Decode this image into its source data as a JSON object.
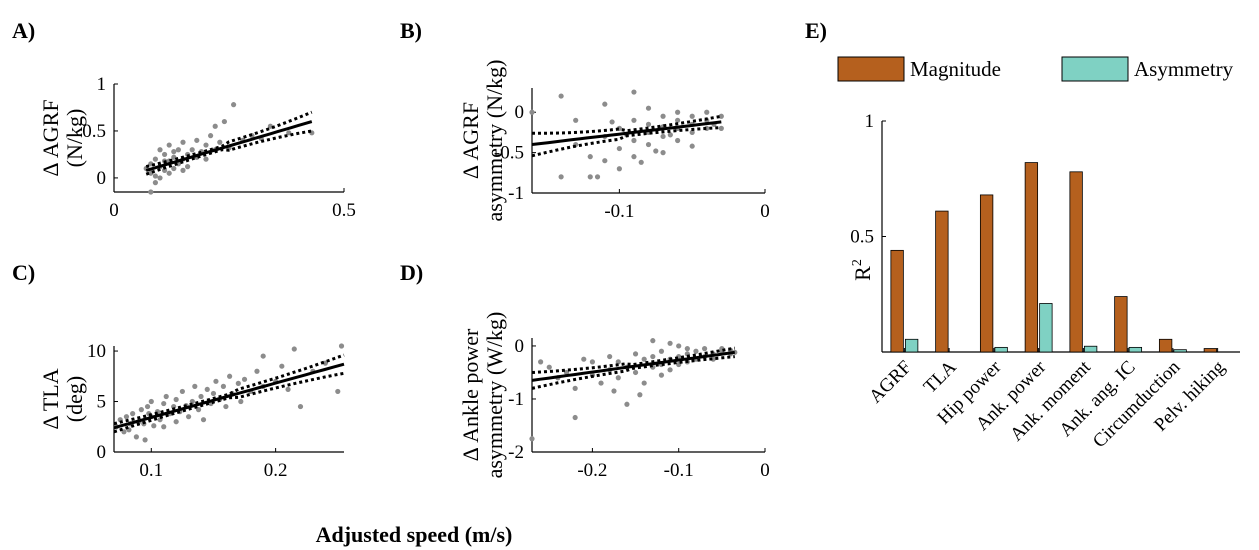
{
  "figure": {
    "xlabel": "Adjusted speed (m/s)"
  },
  "chart_data": [
    {
      "id": "A",
      "letter": "A)",
      "type": "scatter",
      "ylabel_lines": [
        "Δ AGRF",
        "(N/kg)"
      ],
      "xlim": [
        0,
        0.5
      ],
      "ylim": [
        -0.15,
        1.0
      ],
      "xticks": [
        0,
        0.5
      ],
      "xtick_labels": [
        "0",
        "0.5"
      ],
      "yticks": [
        0,
        0.5,
        1
      ],
      "ytick_labels": [
        "0",
        "0.5",
        "1"
      ],
      "fit": {
        "x0": 0.07,
        "x1": 0.43,
        "y0": 0.08,
        "y1": 0.6,
        "ci": [
          0.04,
          0.1
        ]
      },
      "points": [
        [
          0.07,
          0.1
        ],
        [
          0.08,
          0.05
        ],
        [
          0.08,
          0.15
        ],
        [
          0.09,
          0.2
        ],
        [
          0.09,
          -0.05
        ],
        [
          0.1,
          0.3
        ],
        [
          0.1,
          0.12
        ],
        [
          0.1,
          0.0
        ],
        [
          0.11,
          0.25
        ],
        [
          0.11,
          0.08
        ],
        [
          0.12,
          0.18
        ],
        [
          0.12,
          0.35
        ],
        [
          0.12,
          0.05
        ],
        [
          0.13,
          0.22
        ],
        [
          0.13,
          0.1
        ],
        [
          0.14,
          0.15
        ],
        [
          0.14,
          0.3
        ],
        [
          0.15,
          0.2
        ],
        [
          0.15,
          0.38
        ],
        [
          0.16,
          0.25
        ],
        [
          0.16,
          0.12
        ],
        [
          0.17,
          0.3
        ],
        [
          0.18,
          0.22
        ],
        [
          0.18,
          0.4
        ],
        [
          0.19,
          0.28
        ],
        [
          0.2,
          0.35
        ],
        [
          0.2,
          0.2
        ],
        [
          0.21,
          0.45
        ],
        [
          0.22,
          0.3
        ],
        [
          0.22,
          0.55
        ],
        [
          0.23,
          0.38
        ],
        [
          0.24,
          0.6
        ],
        [
          0.25,
          0.32
        ],
        [
          0.26,
          0.78
        ],
        [
          0.28,
          0.4
        ],
        [
          0.3,
          0.45
        ],
        [
          0.32,
          0.42
        ],
        [
          0.34,
          0.55
        ],
        [
          0.38,
          0.48
        ],
        [
          0.43,
          0.48
        ],
        [
          0.08,
          -0.15
        ],
        [
          0.09,
          0.02
        ],
        [
          0.11,
          0.18
        ],
        [
          0.13,
          0.28
        ],
        [
          0.15,
          0.08
        ]
      ]
    },
    {
      "id": "B",
      "letter": "B)",
      "type": "scatter",
      "ylabel_lines": [
        "Δ AGRF",
        "asymmetry (N/kg)"
      ],
      "xlim": [
        -0.16,
        0
      ],
      "ylim": [
        -1.0,
        0.3
      ],
      "xticks": [
        -0.1,
        0
      ],
      "xtick_labels": [
        "-0.1",
        "0"
      ],
      "yticks": [
        -1,
        -0.5,
        0
      ],
      "ytick_labels": [
        "-1",
        "-0.5",
        "0"
      ],
      "fit": {
        "x0": -0.16,
        "x1": -0.03,
        "y0": -0.4,
        "y1": -0.12,
        "ci": [
          0.14,
          0.07
        ]
      },
      "points": [
        [
          -0.16,
          0.0
        ],
        [
          -0.14,
          0.2
        ],
        [
          -0.14,
          -0.8
        ],
        [
          -0.13,
          -0.4
        ],
        [
          -0.13,
          -0.1
        ],
        [
          -0.12,
          -0.55
        ],
        [
          -0.12,
          -0.8
        ],
        [
          -0.11,
          -0.3
        ],
        [
          -0.11,
          -0.6
        ],
        [
          -0.11,
          0.1
        ],
        [
          -0.1,
          -0.2
        ],
        [
          -0.1,
          -0.45
        ],
        [
          -0.1,
          -0.7
        ],
        [
          -0.09,
          0.25
        ],
        [
          -0.09,
          -0.35
        ],
        [
          -0.09,
          -0.1
        ],
        [
          -0.09,
          -0.55
        ],
        [
          -0.08,
          -0.15
        ],
        [
          -0.08,
          -0.4
        ],
        [
          -0.08,
          0.05
        ],
        [
          -0.08,
          -0.25
        ],
        [
          -0.07,
          -0.3
        ],
        [
          -0.07,
          -0.05
        ],
        [
          -0.07,
          -0.5
        ],
        [
          -0.07,
          -0.18
        ],
        [
          -0.06,
          -0.2
        ],
        [
          -0.06,
          -0.1
        ],
        [
          -0.06,
          -0.35
        ],
        [
          -0.06,
          0.0
        ],
        [
          -0.05,
          -0.15
        ],
        [
          -0.05,
          -0.25
        ],
        [
          -0.05,
          -0.05
        ],
        [
          -0.05,
          -0.42
        ],
        [
          -0.04,
          -0.1
        ],
        [
          -0.04,
          -0.2
        ],
        [
          -0.04,
          0.0
        ],
        [
          -0.035,
          -0.15
        ],
        [
          -0.03,
          -0.05
        ],
        [
          -0.03,
          -0.2
        ],
        [
          -0.085,
          -0.62
        ],
        [
          -0.075,
          -0.48
        ],
        [
          -0.065,
          -0.28
        ],
        [
          -0.095,
          -0.28
        ],
        [
          -0.105,
          -0.12
        ],
        [
          -0.115,
          -0.8
        ]
      ]
    },
    {
      "id": "C",
      "letter": "C)",
      "type": "scatter",
      "ylabel_lines": [
        "Δ TLA",
        "(deg)"
      ],
      "xlim": [
        0.07,
        0.255
      ],
      "ylim": [
        0,
        10.5
      ],
      "xticks": [
        0.1,
        0.2
      ],
      "xtick_labels": [
        "0.1",
        "0.2"
      ],
      "yticks": [
        0,
        5,
        10
      ],
      "ytick_labels": [
        "0",
        "5",
        "10"
      ],
      "fit": {
        "x0": 0.07,
        "x1": 0.255,
        "y0": 2.4,
        "y1": 8.7,
        "ci": [
          0.4,
          0.9
        ]
      },
      "points": [
        [
          0.072,
          2.5
        ],
        [
          0.075,
          3.2
        ],
        [
          0.078,
          2.0
        ],
        [
          0.08,
          3.5
        ],
        [
          0.082,
          2.2
        ],
        [
          0.085,
          3.8
        ],
        [
          0.088,
          1.5
        ],
        [
          0.09,
          3.0
        ],
        [
          0.092,
          4.2
        ],
        [
          0.094,
          2.8
        ],
        [
          0.095,
          1.2
        ],
        [
          0.097,
          4.5
        ],
        [
          0.1,
          3.5
        ],
        [
          0.1,
          5.0
        ],
        [
          0.102,
          2.6
        ],
        [
          0.105,
          4.0
        ],
        [
          0.107,
          3.2
        ],
        [
          0.11,
          4.8
        ],
        [
          0.11,
          2.5
        ],
        [
          0.112,
          5.5
        ],
        [
          0.115,
          3.8
        ],
        [
          0.118,
          4.5
        ],
        [
          0.12,
          3.0
        ],
        [
          0.12,
          5.2
        ],
        [
          0.123,
          4.0
        ],
        [
          0.125,
          6.0
        ],
        [
          0.128,
          4.6
        ],
        [
          0.13,
          3.5
        ],
        [
          0.133,
          5.0
        ],
        [
          0.135,
          6.5
        ],
        [
          0.138,
          4.2
        ],
        [
          0.14,
          5.5
        ],
        [
          0.142,
          3.2
        ],
        [
          0.145,
          6.2
        ],
        [
          0.148,
          4.8
        ],
        [
          0.15,
          5.8
        ],
        [
          0.152,
          7.0
        ],
        [
          0.155,
          5.2
        ],
        [
          0.158,
          6.5
        ],
        [
          0.16,
          4.5
        ],
        [
          0.163,
          7.5
        ],
        [
          0.165,
          5.8
        ],
        [
          0.17,
          6.8
        ],
        [
          0.172,
          5.0
        ],
        [
          0.175,
          7.2
        ],
        [
          0.18,
          6.0
        ],
        [
          0.185,
          8.0
        ],
        [
          0.19,
          9.5
        ],
        [
          0.19,
          6.5
        ],
        [
          0.2,
          7.0
        ],
        [
          0.205,
          8.5
        ],
        [
          0.21,
          6.2
        ],
        [
          0.215,
          10.2
        ],
        [
          0.22,
          4.5
        ],
        [
          0.23,
          8.0
        ],
        [
          0.24,
          8.8
        ],
        [
          0.25,
          6.0
        ],
        [
          0.253,
          10.5
        ],
        [
          0.083,
          2.8
        ],
        [
          0.098,
          3.8
        ]
      ]
    },
    {
      "id": "D",
      "letter": "D)",
      "type": "scatter",
      "ylabel_lines": [
        "Δ Ankle power",
        "asymmetry (W/kg)"
      ],
      "xlim": [
        -0.27,
        0
      ],
      "ylim": [
        -2.0,
        0.15
      ],
      "xticks": [
        -0.2,
        -0.1,
        0
      ],
      "xtick_labels": [
        "-0.2",
        "-0.1",
        "0"
      ],
      "yticks": [
        -2,
        -1,
        0
      ],
      "ytick_labels": [
        "-2",
        "-1",
        "0"
      ],
      "fit": {
        "x0": -0.27,
        "x1": -0.035,
        "y0": -0.65,
        "y1": -0.12,
        "ci": [
          0.15,
          0.08
        ]
      },
      "points": [
        [
          -0.27,
          -1.75
        ],
        [
          -0.26,
          -0.3
        ],
        [
          -0.25,
          -0.4
        ],
        [
          -0.24,
          -0.6
        ],
        [
          -0.23,
          -0.5
        ],
        [
          -0.22,
          -1.35
        ],
        [
          -0.22,
          -0.8
        ],
        [
          -0.21,
          -0.25
        ],
        [
          -0.2,
          -0.55
        ],
        [
          -0.2,
          -0.3
        ],
        [
          -0.19,
          -0.7
        ],
        [
          -0.18,
          -0.2
        ],
        [
          -0.18,
          -0.45
        ],
        [
          -0.17,
          -0.6
        ],
        [
          -0.17,
          -0.3
        ],
        [
          -0.16,
          -1.1
        ],
        [
          -0.16,
          -0.4
        ],
        [
          -0.15,
          -0.15
        ],
        [
          -0.15,
          -0.5
        ],
        [
          -0.14,
          -0.25
        ],
        [
          -0.14,
          -0.7
        ],
        [
          -0.13,
          0.1
        ],
        [
          -0.13,
          -0.4
        ],
        [
          -0.13,
          -0.2
        ],
        [
          -0.12,
          -0.35
        ],
        [
          -0.12,
          -0.55
        ],
        [
          -0.12,
          -0.1
        ],
        [
          -0.11,
          -0.25
        ],
        [
          -0.11,
          0.05
        ],
        [
          -0.11,
          -0.45
        ],
        [
          -0.1,
          -0.2
        ],
        [
          -0.1,
          -0.35
        ],
        [
          -0.1,
          0.0
        ],
        [
          -0.09,
          -0.15
        ],
        [
          -0.09,
          -0.3
        ],
        [
          -0.09,
          -0.05
        ],
        [
          -0.08,
          -0.25
        ],
        [
          -0.08,
          -0.1
        ],
        [
          -0.07,
          -0.2
        ],
        [
          -0.07,
          -0.05
        ],
        [
          -0.06,
          -0.15
        ],
        [
          -0.06,
          -0.25
        ],
        [
          -0.05,
          -0.1
        ],
        [
          -0.05,
          -0.05
        ],
        [
          -0.04,
          -0.15
        ],
        [
          -0.04,
          -0.08
        ],
        [
          -0.035,
          -0.12
        ],
        [
          -0.145,
          -0.92
        ],
        [
          -0.175,
          -0.85
        ]
      ]
    },
    {
      "id": "E",
      "letter": "E)",
      "type": "bar",
      "ylabel": "R",
      "ylabel_sup": "2",
      "ylim": [
        0,
        1
      ],
      "yticks": [
        0.5,
        1
      ],
      "ytick_labels": [
        "0.5",
        "1"
      ],
      "categories": [
        "AGRF",
        "TLA",
        "Hip power",
        "Ank. power",
        "Ank. moment",
        "Ank. ang. IC",
        "Circumduction",
        "Pelv. hiking"
      ],
      "series": [
        {
          "name": "Magnitude",
          "color": "#b5601e",
          "values": [
            0.44,
            0.61,
            0.68,
            0.82,
            0.78,
            0.24,
            0.055,
            0.015
          ]
        },
        {
          "name": "Asymmetry",
          "color": "#7fd1c3",
          "values": [
            0.055,
            0.0,
            0.02,
            0.21,
            0.025,
            0.02,
            0.01,
            0.0
          ]
        }
      ],
      "legend_position": "top"
    }
  ]
}
